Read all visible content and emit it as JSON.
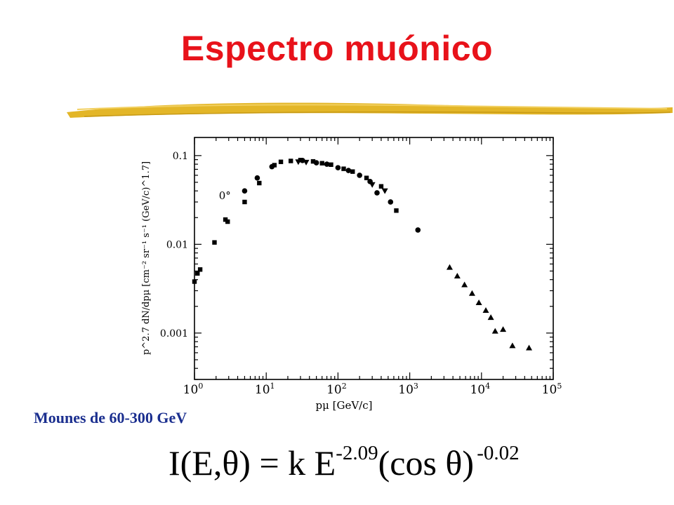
{
  "slide": {
    "title": "Espectro muónico",
    "subtitle": "Mounes de 60-300 GeV",
    "formula": {
      "lhs": "I(E,θ) = k E",
      "exp1": "-2.09",
      "mid": "(cos θ)",
      "exp2": "-0.02"
    },
    "colors": {
      "title": "#e8121a",
      "subtitle": "#1b2f8f",
      "brush": "#e3b628"
    }
  },
  "chart_data": {
    "type": "scatter",
    "x_scale": "log",
    "y_scale": "log",
    "xlim": [
      1,
      100000
    ],
    "ylim": [
      0.0003,
      0.16
    ],
    "xlabel": "pμ [GeV/c]",
    "ylabel": "p^2.7 dN/dpμ [cm⁻² sr⁻¹ s⁻¹ (GeV/c)^1.7]",
    "x_ticks": [
      {
        "value": 1,
        "base": "10",
        "exp": "0"
      },
      {
        "value": 10,
        "base": "10",
        "exp": "1"
      },
      {
        "value": 100,
        "base": "10",
        "exp": "2"
      },
      {
        "value": 1000,
        "base": "10",
        "exp": "3"
      },
      {
        "value": 10000,
        "base": "10",
        "exp": "4"
      },
      {
        "value": 100000,
        "base": "10",
        "exp": "5"
      }
    ],
    "y_ticks": [
      {
        "value": 0.1,
        "label": "0.1"
      },
      {
        "value": 0.01,
        "label": "0.01"
      },
      {
        "value": 0.001,
        "label": "0.001"
      }
    ],
    "annotation": {
      "text": "0°",
      "x": 3.0,
      "y": 0.031
    },
    "series": [
      {
        "marker": "square",
        "points": [
          {
            "x": 1.0,
            "y": 0.0038
          },
          {
            "x": 1.1,
            "y": 0.0047
          },
          {
            "x": 1.2,
            "y": 0.0052
          },
          {
            "x": 1.9,
            "y": 0.0105
          },
          {
            "x": 2.7,
            "y": 0.019
          },
          {
            "x": 2.9,
            "y": 0.018
          },
          {
            "x": 5.0,
            "y": 0.03
          },
          {
            "x": 8.0,
            "y": 0.049
          },
          {
            "x": 13,
            "y": 0.078
          },
          {
            "x": 16,
            "y": 0.085
          },
          {
            "x": 22,
            "y": 0.087
          },
          {
            "x": 30,
            "y": 0.089
          },
          {
            "x": 45,
            "y": 0.086
          },
          {
            "x": 60,
            "y": 0.082
          },
          {
            "x": 80,
            "y": 0.079
          },
          {
            "x": 120,
            "y": 0.071
          },
          {
            "x": 160,
            "y": 0.066
          },
          {
            "x": 250,
            "y": 0.056
          },
          {
            "x": 400,
            "y": 0.045
          },
          {
            "x": 650,
            "y": 0.024
          }
        ]
      },
      {
        "marker": "circle",
        "points": [
          {
            "x": 5.0,
            "y": 0.04
          },
          {
            "x": 7.5,
            "y": 0.056
          },
          {
            "x": 12,
            "y": 0.075
          },
          {
            "x": 32,
            "y": 0.088
          },
          {
            "x": 50,
            "y": 0.083
          },
          {
            "x": 70,
            "y": 0.08
          },
          {
            "x": 100,
            "y": 0.073
          },
          {
            "x": 140,
            "y": 0.068
          },
          {
            "x": 200,
            "y": 0.06
          },
          {
            "x": 280,
            "y": 0.051
          },
          {
            "x": 350,
            "y": 0.038
          },
          {
            "x": 540,
            "y": 0.03
          },
          {
            "x": 1300,
            "y": 0.0145
          }
        ]
      },
      {
        "marker": "triangle-down",
        "points": [
          {
            "x": 28,
            "y": 0.085
          },
          {
            "x": 36,
            "y": 0.084
          },
          {
            "x": 300,
            "y": 0.047
          },
          {
            "x": 450,
            "y": 0.04
          }
        ]
      },
      {
        "marker": "triangle-up",
        "points": [
          {
            "x": 3600,
            "y": 0.0055
          },
          {
            "x": 4600,
            "y": 0.0044
          },
          {
            "x": 5800,
            "y": 0.0035
          },
          {
            "x": 7400,
            "y": 0.0028
          },
          {
            "x": 9200,
            "y": 0.0022
          },
          {
            "x": 11500,
            "y": 0.0018
          },
          {
            "x": 13500,
            "y": 0.0015
          },
          {
            "x": 15500,
            "y": 0.00105
          },
          {
            "x": 20000,
            "y": 0.0011
          },
          {
            "x": 27000,
            "y": 0.00072
          },
          {
            "x": 46000,
            "y": 0.00068
          }
        ]
      }
    ]
  }
}
